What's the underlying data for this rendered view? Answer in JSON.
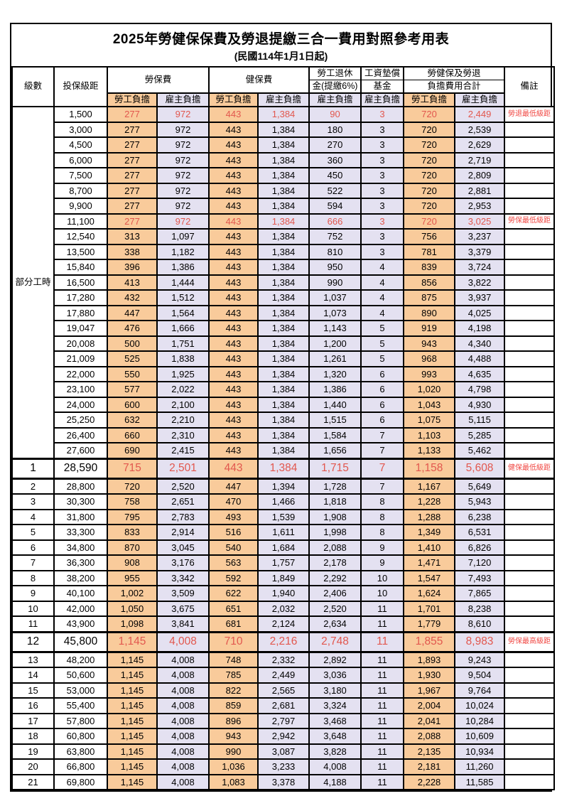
{
  "page": {
    "title": "2025年勞健保保費及勞退提繳三合一費用對照參考用表",
    "subtitle": "(民國114年1月1日起)"
  },
  "colors": {
    "worker_bg": "#F9CB9B",
    "employer_bg": "#E4E1F1",
    "fee_red": "#E2574E",
    "remark_red": "#F04843",
    "border": "#000000"
  },
  "header": {
    "level": "級數",
    "bracket": "投保級距",
    "labor_fee": "勞保費",
    "health_fee": "健保費",
    "pension_l1": "勞工退休",
    "pension_l2": "金(提繳6%)",
    "fund_l1": "工資墊償",
    "fund_l2": "基金",
    "total_l1": "勞健保及勞退",
    "total_l2": "負擔費用合計",
    "remark": "備註",
    "worker": "勞工負擔",
    "employer": "雇主負擔"
  },
  "table": {
    "section": {
      "label": "部分工時",
      "rowspan": 23
    },
    "rows": [
      {
        "level": "",
        "bracket": "1,500",
        "fees": [
          "277",
          "972",
          "443",
          "1,384",
          "90",
          "3",
          "720",
          "2,449"
        ],
        "remark": "勞退最低級距",
        "red": true
      },
      {
        "level": "",
        "bracket": "3,000",
        "fees": [
          "277",
          "972",
          "443",
          "1,384",
          "180",
          "3",
          "720",
          "2,539"
        ],
        "remark": ""
      },
      {
        "level": "",
        "bracket": "4,500",
        "fees": [
          "277",
          "972",
          "443",
          "1,384",
          "270",
          "3",
          "720",
          "2,629"
        ],
        "remark": ""
      },
      {
        "level": "",
        "bracket": "6,000",
        "fees": [
          "277",
          "972",
          "443",
          "1,384",
          "360",
          "3",
          "720",
          "2,719"
        ],
        "remark": ""
      },
      {
        "level": "",
        "bracket": "7,500",
        "fees": [
          "277",
          "972",
          "443",
          "1,384",
          "450",
          "3",
          "720",
          "2,809"
        ],
        "remark": ""
      },
      {
        "level": "",
        "bracket": "8,700",
        "fees": [
          "277",
          "972",
          "443",
          "1,384",
          "522",
          "3",
          "720",
          "2,881"
        ],
        "remark": ""
      },
      {
        "level": "",
        "bracket": "9,900",
        "fees": [
          "277",
          "972",
          "443",
          "1,384",
          "594",
          "3",
          "720",
          "2,953"
        ],
        "remark": ""
      },
      {
        "level": "",
        "bracket": "11,100",
        "fees": [
          "277",
          "972",
          "443",
          "1,384",
          "666",
          "3",
          "720",
          "3,025"
        ],
        "remark": "勞保最低級距",
        "red": true
      },
      {
        "level": "",
        "bracket": "12,540",
        "fees": [
          "313",
          "1,097",
          "443",
          "1,384",
          "752",
          "3",
          "756",
          "3,237"
        ],
        "remark": ""
      },
      {
        "level": "",
        "bracket": "13,500",
        "fees": [
          "338",
          "1,182",
          "443",
          "1,384",
          "810",
          "3",
          "781",
          "3,379"
        ],
        "remark": ""
      },
      {
        "level": "",
        "bracket": "15,840",
        "fees": [
          "396",
          "1,386",
          "443",
          "1,384",
          "950",
          "4",
          "839",
          "3,724"
        ],
        "remark": ""
      },
      {
        "level": "",
        "bracket": "16,500",
        "fees": [
          "413",
          "1,444",
          "443",
          "1,384",
          "990",
          "4",
          "856",
          "3,822"
        ],
        "remark": ""
      },
      {
        "level": "",
        "bracket": "17,280",
        "fees": [
          "432",
          "1,512",
          "443",
          "1,384",
          "1,037",
          "4",
          "875",
          "3,937"
        ],
        "remark": ""
      },
      {
        "level": "",
        "bracket": "17,880",
        "fees": [
          "447",
          "1,564",
          "443",
          "1,384",
          "1,073",
          "4",
          "890",
          "4,025"
        ],
        "remark": ""
      },
      {
        "level": "",
        "bracket": "19,047",
        "fees": [
          "476",
          "1,666",
          "443",
          "1,384",
          "1,143",
          "5",
          "919",
          "4,198"
        ],
        "remark": ""
      },
      {
        "level": "",
        "bracket": "20,008",
        "fees": [
          "500",
          "1,751",
          "443",
          "1,384",
          "1,200",
          "5",
          "943",
          "4,340"
        ],
        "remark": ""
      },
      {
        "level": "",
        "bracket": "21,009",
        "fees": [
          "525",
          "1,838",
          "443",
          "1,384",
          "1,261",
          "5",
          "968",
          "4,488"
        ],
        "remark": ""
      },
      {
        "level": "",
        "bracket": "22,000",
        "fees": [
          "550",
          "1,925",
          "443",
          "1,384",
          "1,320",
          "6",
          "993",
          "4,635"
        ],
        "remark": ""
      },
      {
        "level": "",
        "bracket": "23,100",
        "fees": [
          "577",
          "2,022",
          "443",
          "1,384",
          "1,386",
          "6",
          "1,020",
          "4,798"
        ],
        "remark": ""
      },
      {
        "level": "",
        "bracket": "24,000",
        "fees": [
          "600",
          "2,100",
          "443",
          "1,384",
          "1,440",
          "6",
          "1,043",
          "4,930"
        ],
        "remark": ""
      },
      {
        "level": "",
        "bracket": "25,250",
        "fees": [
          "632",
          "2,210",
          "443",
          "1,384",
          "1,515",
          "6",
          "1,075",
          "5,115"
        ],
        "remark": ""
      },
      {
        "level": "",
        "bracket": "26,400",
        "fees": [
          "660",
          "2,310",
          "443",
          "1,384",
          "1,584",
          "7",
          "1,103",
          "5,285"
        ],
        "remark": ""
      },
      {
        "level": "",
        "bracket": "27,600",
        "fees": [
          "690",
          "2,415",
          "443",
          "1,384",
          "1,656",
          "7",
          "1,133",
          "5,462"
        ],
        "remark": ""
      },
      {
        "level": "1",
        "bracket": "28,590",
        "fees": [
          "715",
          "2,501",
          "443",
          "1,384",
          "1,715",
          "7",
          "1,158",
          "5,608"
        ],
        "remark": "健保最低級距",
        "red": true,
        "emph": true
      },
      {
        "level": "2",
        "bracket": "28,800",
        "fees": [
          "720",
          "2,520",
          "447",
          "1,394",
          "1,728",
          "7",
          "1,167",
          "5,649"
        ],
        "remark": ""
      },
      {
        "level": "3",
        "bracket": "30,300",
        "fees": [
          "758",
          "2,651",
          "470",
          "1,466",
          "1,818",
          "8",
          "1,228",
          "5,943"
        ],
        "remark": ""
      },
      {
        "level": "4",
        "bracket": "31,800",
        "fees": [
          "795",
          "2,783",
          "493",
          "1,539",
          "1,908",
          "8",
          "1,288",
          "6,238"
        ],
        "remark": ""
      },
      {
        "level": "5",
        "bracket": "33,300",
        "fees": [
          "833",
          "2,914",
          "516",
          "1,611",
          "1,998",
          "8",
          "1,349",
          "6,531"
        ],
        "remark": ""
      },
      {
        "level": "6",
        "bracket": "34,800",
        "fees": [
          "870",
          "3,045",
          "540",
          "1,684",
          "2,088",
          "9",
          "1,410",
          "6,826"
        ],
        "remark": ""
      },
      {
        "level": "7",
        "bracket": "36,300",
        "fees": [
          "908",
          "3,176",
          "563",
          "1,757",
          "2,178",
          "9",
          "1,471",
          "7,120"
        ],
        "remark": ""
      },
      {
        "level": "8",
        "bracket": "38,200",
        "fees": [
          "955",
          "3,342",
          "592",
          "1,849",
          "2,292",
          "10",
          "1,547",
          "7,493"
        ],
        "remark": ""
      },
      {
        "level": "9",
        "bracket": "40,100",
        "fees": [
          "1,002",
          "3,509",
          "622",
          "1,940",
          "2,406",
          "10",
          "1,624",
          "7,865"
        ],
        "remark": ""
      },
      {
        "level": "10",
        "bracket": "42,000",
        "fees": [
          "1,050",
          "3,675",
          "651",
          "2,032",
          "2,520",
          "11",
          "1,701",
          "8,238"
        ],
        "remark": ""
      },
      {
        "level": "11",
        "bracket": "43,900",
        "fees": [
          "1,098",
          "3,841",
          "681",
          "2,124",
          "2,634",
          "11",
          "1,779",
          "8,610"
        ],
        "remark": ""
      },
      {
        "level": "12",
        "bracket": "45,800",
        "fees": [
          "1,145",
          "4,008",
          "710",
          "2,216",
          "2,748",
          "11",
          "1,855",
          "8,983"
        ],
        "remark": "勞保最高級距",
        "red": true,
        "emph": true
      },
      {
        "level": "13",
        "bracket": "48,200",
        "fees": [
          "1,145",
          "4,008",
          "748",
          "2,332",
          "2,892",
          "11",
          "1,893",
          "9,243"
        ],
        "remark": ""
      },
      {
        "level": "14",
        "bracket": "50,600",
        "fees": [
          "1,145",
          "4,008",
          "785",
          "2,449",
          "3,036",
          "11",
          "1,930",
          "9,504"
        ],
        "remark": ""
      },
      {
        "level": "15",
        "bracket": "53,000",
        "fees": [
          "1,145",
          "4,008",
          "822",
          "2,565",
          "3,180",
          "11",
          "1,967",
          "9,764"
        ],
        "remark": ""
      },
      {
        "level": "16",
        "bracket": "55,400",
        "fees": [
          "1,145",
          "4,008",
          "859",
          "2,681",
          "3,324",
          "11",
          "2,004",
          "10,024"
        ],
        "remark": ""
      },
      {
        "level": "17",
        "bracket": "57,800",
        "fees": [
          "1,145",
          "4,008",
          "896",
          "2,797",
          "3,468",
          "11",
          "2,041",
          "10,284"
        ],
        "remark": ""
      },
      {
        "level": "18",
        "bracket": "60,800",
        "fees": [
          "1,145",
          "4,008",
          "943",
          "2,942",
          "3,648",
          "11",
          "2,088",
          "10,609"
        ],
        "remark": ""
      },
      {
        "level": "19",
        "bracket": "63,800",
        "fees": [
          "1,145",
          "4,008",
          "990",
          "3,087",
          "3,828",
          "11",
          "2,135",
          "10,934"
        ],
        "remark": ""
      },
      {
        "level": "20",
        "bracket": "66,800",
        "fees": [
          "1,145",
          "4,008",
          "1,036",
          "3,233",
          "4,008",
          "11",
          "2,181",
          "11,260"
        ],
        "remark": ""
      },
      {
        "level": "21",
        "bracket": "69,800",
        "fees": [
          "1,145",
          "4,008",
          "1,083",
          "3,378",
          "4,188",
          "11",
          "2,228",
          "11,585"
        ],
        "remark": ""
      }
    ]
  }
}
